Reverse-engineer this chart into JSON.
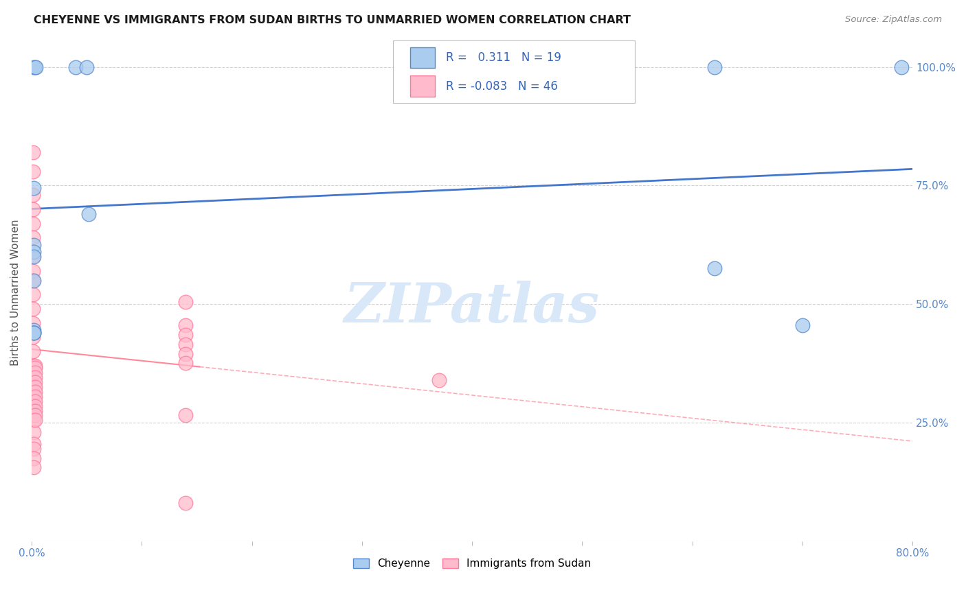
{
  "title": "CHEYENNE VS IMMIGRANTS FROM SUDAN BIRTHS TO UNMARRIED WOMEN CORRELATION CHART",
  "source": "Source: ZipAtlas.com",
  "ylabel": "Births to Unmarried Women",
  "legend_1_label": "Cheyenne",
  "legend_2_label": "Immigrants from Sudan",
  "R1": "0.311",
  "N1": "19",
  "R2": "-0.083",
  "N2": "46",
  "blue_color": "#AACCEE",
  "pink_color": "#FFBBCC",
  "blue_edge_color": "#5588CC",
  "pink_edge_color": "#FF7799",
  "blue_line_color": "#4477CC",
  "pink_line_color": "#FF8899",
  "watermark_color": "#D8E8F8",
  "blue_x": [
    0.002,
    0.003,
    0.004,
    0.002,
    0.04,
    0.05,
    0.052,
    0.002,
    0.002,
    0.002,
    0.002,
    0.002,
    0.002,
    0.002,
    0.002,
    0.62,
    0.7,
    0.62,
    0.79
  ],
  "blue_y": [
    1.0,
    1.0,
    1.0,
    0.745,
    1.0,
    1.0,
    0.69,
    0.625,
    0.61,
    0.6,
    0.55,
    0.445,
    0.44,
    0.44,
    0.44,
    0.575,
    0.455,
    1.0,
    1.0
  ],
  "pink_x": [
    0.001,
    0.001,
    0.001,
    0.001,
    0.001,
    0.001,
    0.001,
    0.001,
    0.001,
    0.001,
    0.001,
    0.001,
    0.001,
    0.001,
    0.001,
    0.001,
    0.002,
    0.002,
    0.002,
    0.002,
    0.002,
    0.002,
    0.002,
    0.002,
    0.003,
    0.003,
    0.003,
    0.003,
    0.003,
    0.003,
    0.003,
    0.003,
    0.003,
    0.003,
    0.003,
    0.003,
    0.003,
    0.14,
    0.14,
    0.14,
    0.14,
    0.14,
    0.14,
    0.37,
    0.14,
    0.14
  ],
  "pink_y": [
    0.82,
    0.78,
    0.73,
    0.7,
    0.67,
    0.64,
    0.6,
    0.57,
    0.55,
    0.52,
    0.49,
    0.46,
    0.43,
    0.4,
    0.37,
    0.34,
    0.31,
    0.28,
    0.255,
    0.23,
    0.205,
    0.195,
    0.175,
    0.155,
    0.37,
    0.365,
    0.355,
    0.345,
    0.335,
    0.325,
    0.315,
    0.305,
    0.295,
    0.285,
    0.275,
    0.265,
    0.255,
    0.455,
    0.435,
    0.415,
    0.395,
    0.265,
    0.505,
    0.34,
    0.375,
    0.08
  ],
  "xmin": 0.0,
  "xmax": 0.8,
  "ymin": 0.0,
  "ymax": 1.05,
  "xticks": [
    0.0,
    0.1,
    0.2,
    0.3,
    0.4,
    0.5,
    0.6,
    0.7,
    0.8
  ],
  "xticklabels": [
    "0.0%",
    "",
    "",
    "",
    "",
    "",
    "",
    "",
    "80.0%"
  ],
  "yticks_right": [
    0.25,
    0.5,
    0.75,
    1.0
  ],
  "yticklabels_right": [
    "25.0%",
    "50.0%",
    "75.0%",
    "100.0%"
  ]
}
